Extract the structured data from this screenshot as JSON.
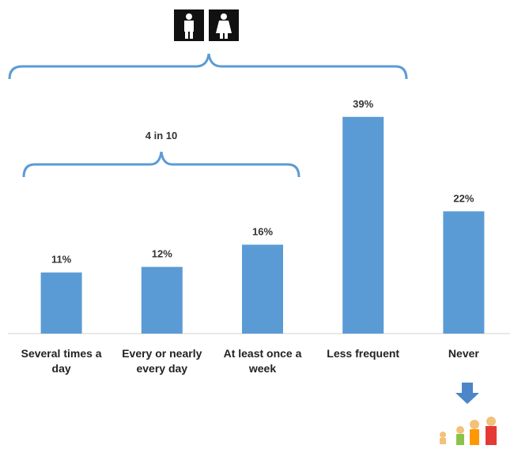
{
  "chart_data": {
    "type": "bar",
    "categories": [
      "Several times a day",
      "Every or nearly every day",
      "At least once a week",
      "Less frequent",
      "Never"
    ],
    "values": [
      11,
      12,
      16,
      39,
      22
    ],
    "value_labels": [
      "11%",
      "12%",
      "16%",
      "39%",
      "22%"
    ],
    "color": "#5b9bd5",
    "annotation": "4 in 10"
  }
}
